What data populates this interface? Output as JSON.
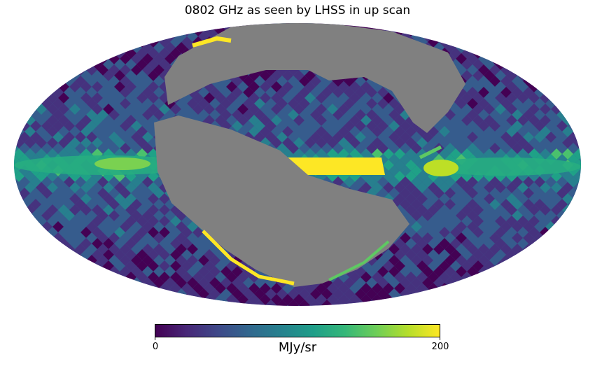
{
  "title": "0802 GHz as seen by LHSS in up scan",
  "colorbar": {
    "min_label": "0",
    "max_label": "200",
    "unit": "MJy/sr",
    "min": 0,
    "max": 200,
    "colormap": "viridis",
    "colors": [
      "#440154",
      "#3b528b",
      "#21918c",
      "#5ec962",
      "#fde725"
    ]
  },
  "map": {
    "projection": "Mollweide",
    "masked_color": "#808080",
    "background_color": "#ffffff"
  }
}
